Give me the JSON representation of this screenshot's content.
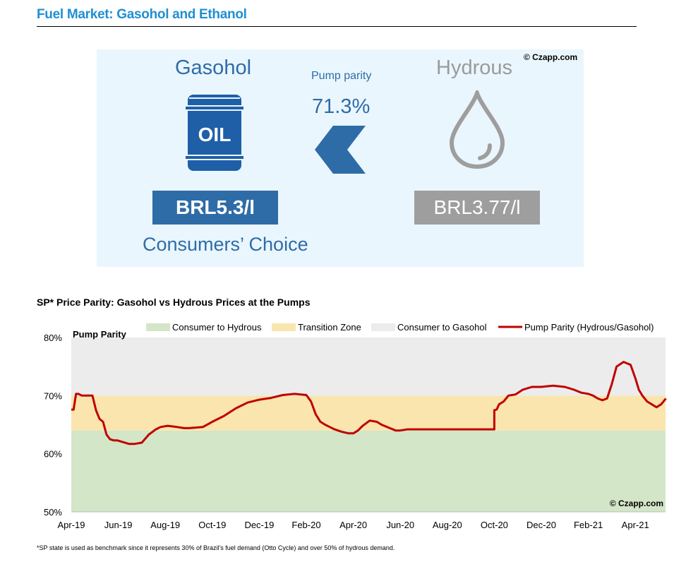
{
  "header": {
    "title": "Fuel Market: Gasohol and Ethanol"
  },
  "infographic": {
    "copyright": "© Czapp.com",
    "gasohol_label": "Gasohol",
    "hydrous_label": "Hydrous",
    "pump_parity_label": "Pump parity",
    "pump_parity_value": "71.3%",
    "oil_drum_text": "OIL",
    "gasohol_price": "BRL5.3/l",
    "hydrous_price": "BRL3.77/l",
    "choice_label": "Consumers’ Choice",
    "icons": [
      "oil-drum-icon",
      "arrow-left-icon",
      "water-drop-icon"
    ],
    "colors": {
      "gasohol": "#2e6ca8",
      "hydrous": "#9e9e9e",
      "background": "#eaf6fd"
    }
  },
  "chart_title": "SP* Price Parity: Gasohol vs Hydrous Prices at the Pumps",
  "footnote": "*SP state is used as benchmark since it represents 30% of Brazil’s fuel demand (Otto Cycle) and over 50% of hydrous demand.",
  "chart_data": {
    "type": "line",
    "title": "SP* Price Parity: Gasohol vs Hydrous Prices at the Pumps",
    "ylabel": "Pump Parity",
    "ylim": [
      50,
      80
    ],
    "yticks": [
      "50%",
      "60%",
      "70%",
      "80%"
    ],
    "xticks": [
      "Apr-19",
      "Jun-19",
      "Aug-19",
      "Oct-19",
      "Dec-19",
      "Feb-20",
      "Apr-20",
      "Jun-20",
      "Aug-20",
      "Oct-20",
      "Dec-20",
      "Feb-21",
      "Apr-21"
    ],
    "copyright": "© Czapp.com",
    "legend_position": "top",
    "bands": [
      {
        "name": "Consumer to Hydrous",
        "from": 50,
        "to": 64,
        "color": "#d3e6c8"
      },
      {
        "name": "Transition Zone",
        "from": 64,
        "to": 70,
        "color": "#f9e5ad"
      },
      {
        "name": "Consumer to Gasohol",
        "from": 70,
        "to": 80,
        "color": "#ececec"
      }
    ],
    "series": [
      {
        "name": "Pump Parity (Hydrous/Gasohol)",
        "color": "#c00000",
        "x_months": [
          0,
          0.1,
          0.2,
          0.3,
          0.45,
          0.6,
          0.9,
          1.05,
          1.2,
          1.35,
          1.5,
          1.65,
          1.8,
          1.95,
          2.2,
          2.45,
          2.7,
          3.0,
          3.3,
          3.6,
          3.8,
          4.1,
          4.5,
          4.8,
          5.0,
          5.3,
          5.6,
          6.0,
          6.5,
          7.0,
          7.5,
          8.0,
          8.5,
          9.0,
          9.5,
          10.0,
          10.2,
          10.4,
          10.6,
          10.8,
          11.0,
          11.2,
          11.5,
          11.8,
          12.0,
          12.2,
          12.4,
          12.7,
          13.0,
          13.2,
          13.5,
          13.8,
          14.0,
          14.3,
          14.6,
          14.8,
          15.0,
          15.2,
          15.4,
          15.7,
          16.0,
          16.3,
          16.6,
          17.0,
          17.5,
          18.0,
          18.0,
          18.1,
          18.2,
          18.4,
          18.6,
          18.9,
          19.2,
          19.6,
          20.0,
          20.5,
          21.0,
          21.4,
          21.7,
          22.0,
          22.2,
          22.4,
          22.6,
          22.8,
          23.0,
          23.2,
          23.5,
          23.8,
          24.0,
          24.15,
          24.3,
          24.5,
          24.7,
          24.9,
          25.1,
          25.3
        ],
        "values": [
          67.6,
          67.6,
          70.3,
          70.3,
          70.0,
          70.0,
          70.0,
          67.5,
          66.0,
          65.5,
          63.3,
          62.5,
          62.3,
          62.3,
          62.0,
          61.7,
          61.7,
          61.9,
          63.3,
          64.2,
          64.6,
          64.8,
          64.6,
          64.4,
          64.4,
          64.5,
          64.6,
          65.5,
          66.5,
          67.8,
          68.8,
          69.3,
          69.6,
          70.1,
          70.3,
          70.1,
          69.0,
          66.8,
          65.5,
          65.0,
          64.6,
          64.2,
          63.8,
          63.5,
          63.5,
          64.0,
          64.8,
          65.7,
          65.5,
          65.0,
          64.5,
          64.0,
          64.0,
          64.2,
          64.2,
          64.2,
          64.2,
          64.2,
          64.2,
          64.2,
          64.2,
          64.2,
          64.2,
          64.2,
          64.2,
          64.2,
          67.5,
          67.6,
          68.5,
          69.0,
          70.0,
          70.2,
          71.0,
          71.5,
          71.5,
          71.7,
          71.5,
          71.0,
          70.5,
          70.3,
          70.0,
          69.5,
          69.2,
          69.5,
          72.0,
          75.0,
          75.8,
          75.3,
          73.0,
          71.0,
          70.0,
          69.0,
          68.5,
          68.0,
          68.5,
          69.5
        ]
      }
    ]
  }
}
